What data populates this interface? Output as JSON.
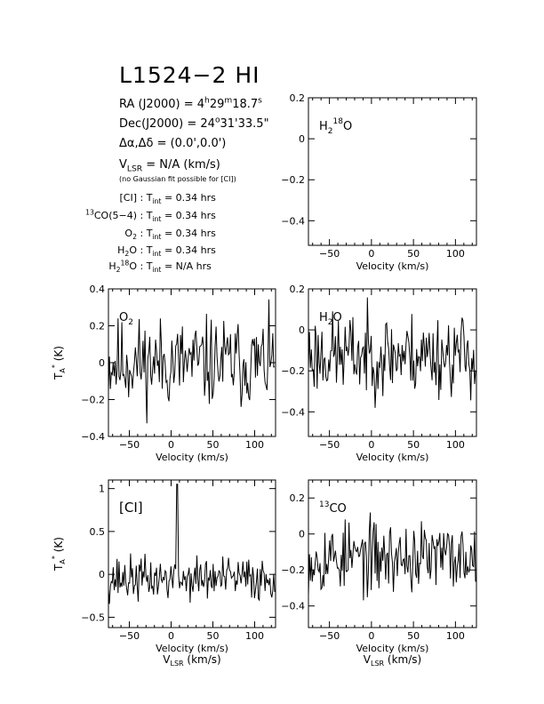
{
  "header": {
    "title": "L1524−2 HI",
    "ra_label": "RA (J2000) =",
    "ra_h": "4",
    "ra_m": "29",
    "ra_s": "18.7",
    "dec_label": "Dec(J2000) =",
    "dec_d": "24",
    "dec_rest": "31'33.5\"",
    "offset_label": "Δα,Δδ =",
    "offset_value": "(0.0',0.0')",
    "vlsr_label": "V",
    "vlsr_sub": "LSR",
    "vlsr_value": "= N/A  (km/s)",
    "note": "(no Gaussian fit possible for [CI])"
  },
  "integration": [
    {
      "prefix": "",
      "line": "[CI]",
      "time": "0.34 hrs"
    },
    {
      "prefix": "13",
      "line": "CO(5−4)",
      "time": "0.34 hrs"
    },
    {
      "prefix": "",
      "line": "O",
      "sub": "2",
      "time": "0.34 hrs"
    },
    {
      "prefix": "",
      "line": "H",
      "sub": "2",
      "tail": "O",
      "time": "0.34 hrs"
    },
    {
      "prefix": "",
      "line": "H",
      "sub": "2",
      "sup": "18",
      "tail": "O",
      "time": "N/A hrs"
    }
  ],
  "tint_label": "T",
  "tint_sub": "int",
  "chart_data": [
    {
      "type": "line",
      "panel": "h218o",
      "label_parts": [
        "H",
        "2",
        "18",
        "O"
      ],
      "xlim": [
        -75,
        125
      ],
      "ylim": [
        -0.52,
        0.2
      ],
      "xticks": [
        -50,
        0,
        50,
        100
      ],
      "yticks": [
        0.2,
        0,
        -0.2,
        -0.4
      ],
      "ytick_labels": [
        "0.2",
        "0",
        "−0.2",
        "−0.4"
      ],
      "xlabel": "Velocity (km/s)",
      "ylabel": "",
      "xlabel2": "",
      "series": []
    },
    {
      "type": "line",
      "panel": "o2",
      "label_parts": [
        "O",
        "2"
      ],
      "xlim": [
        -75,
        125
      ],
      "ylim": [
        -0.4,
        0.4
      ],
      "xticks": [
        -50,
        0,
        50,
        100
      ],
      "yticks": [
        0.4,
        0.2,
        0,
        -0.2,
        -0.4
      ],
      "ytick_labels": [
        "0.4",
        "0.2",
        "0",
        "−0.2",
        "−0.4"
      ],
      "xlabel": "Velocity (km/s)",
      "ylabel": "T*A (K)",
      "xlabel2": "",
      "noise": {
        "sigma": 0.12,
        "mean": 0.0,
        "seed": 11
      },
      "series": []
    },
    {
      "type": "line",
      "panel": "h2o",
      "label_parts": [
        "H",
        "2",
        "O"
      ],
      "xlim": [
        -75,
        125
      ],
      "ylim": [
        -0.52,
        0.2
      ],
      "xticks": [
        -50,
        0,
        50,
        100
      ],
      "yticks": [
        0.2,
        0,
        -0.2,
        -0.4
      ],
      "ytick_labels": [
        "0.2",
        "0",
        "−0.2",
        "−0.4"
      ],
      "xlabel": "Velocity (km/s)",
      "ylabel": "",
      "xlabel2": "",
      "noise": {
        "sigma": 0.1,
        "mean": -0.12,
        "seed": 23
      },
      "series": []
    },
    {
      "type": "line",
      "panel": "ci",
      "label_parts": [
        "[CI]"
      ],
      "xlim": [
        -75,
        125
      ],
      "ylim": [
        -0.62,
        1.1
      ],
      "xticks": [
        -50,
        0,
        50,
        100
      ],
      "yticks": [
        1,
        0.5,
        0,
        -0.5
      ],
      "ytick_labels": [
        "1",
        "0.5",
        "0",
        "−0.5"
      ],
      "xlabel": "Velocity (km/s)",
      "ylabel": "T*A (K)",
      "xlabel2": "VLSR (km/s)",
      "noise": {
        "sigma": 0.13,
        "mean": -0.05,
        "seed": 37
      },
      "peak": {
        "x": 7,
        "y": 1.05
      },
      "series": []
    },
    {
      "type": "line",
      "panel": "13co",
      "label_parts": [
        "13",
        "CO"
      ],
      "xlim": [
        -75,
        125
      ],
      "ylim": [
        -0.52,
        0.3
      ],
      "xticks": [
        -50,
        0,
        50,
        100
      ],
      "yticks": [
        0.2,
        0,
        -0.2,
        -0.4
      ],
      "ytick_labels": [
        "0.2",
        "0",
        "−0.2",
        "−0.4"
      ],
      "xlabel": "Velocity (km/s)",
      "ylabel": "",
      "xlabel2": "VLSR (km/s)",
      "noise": {
        "sigma": 0.1,
        "mean": -0.13,
        "seed": 53
      },
      "series": []
    }
  ]
}
